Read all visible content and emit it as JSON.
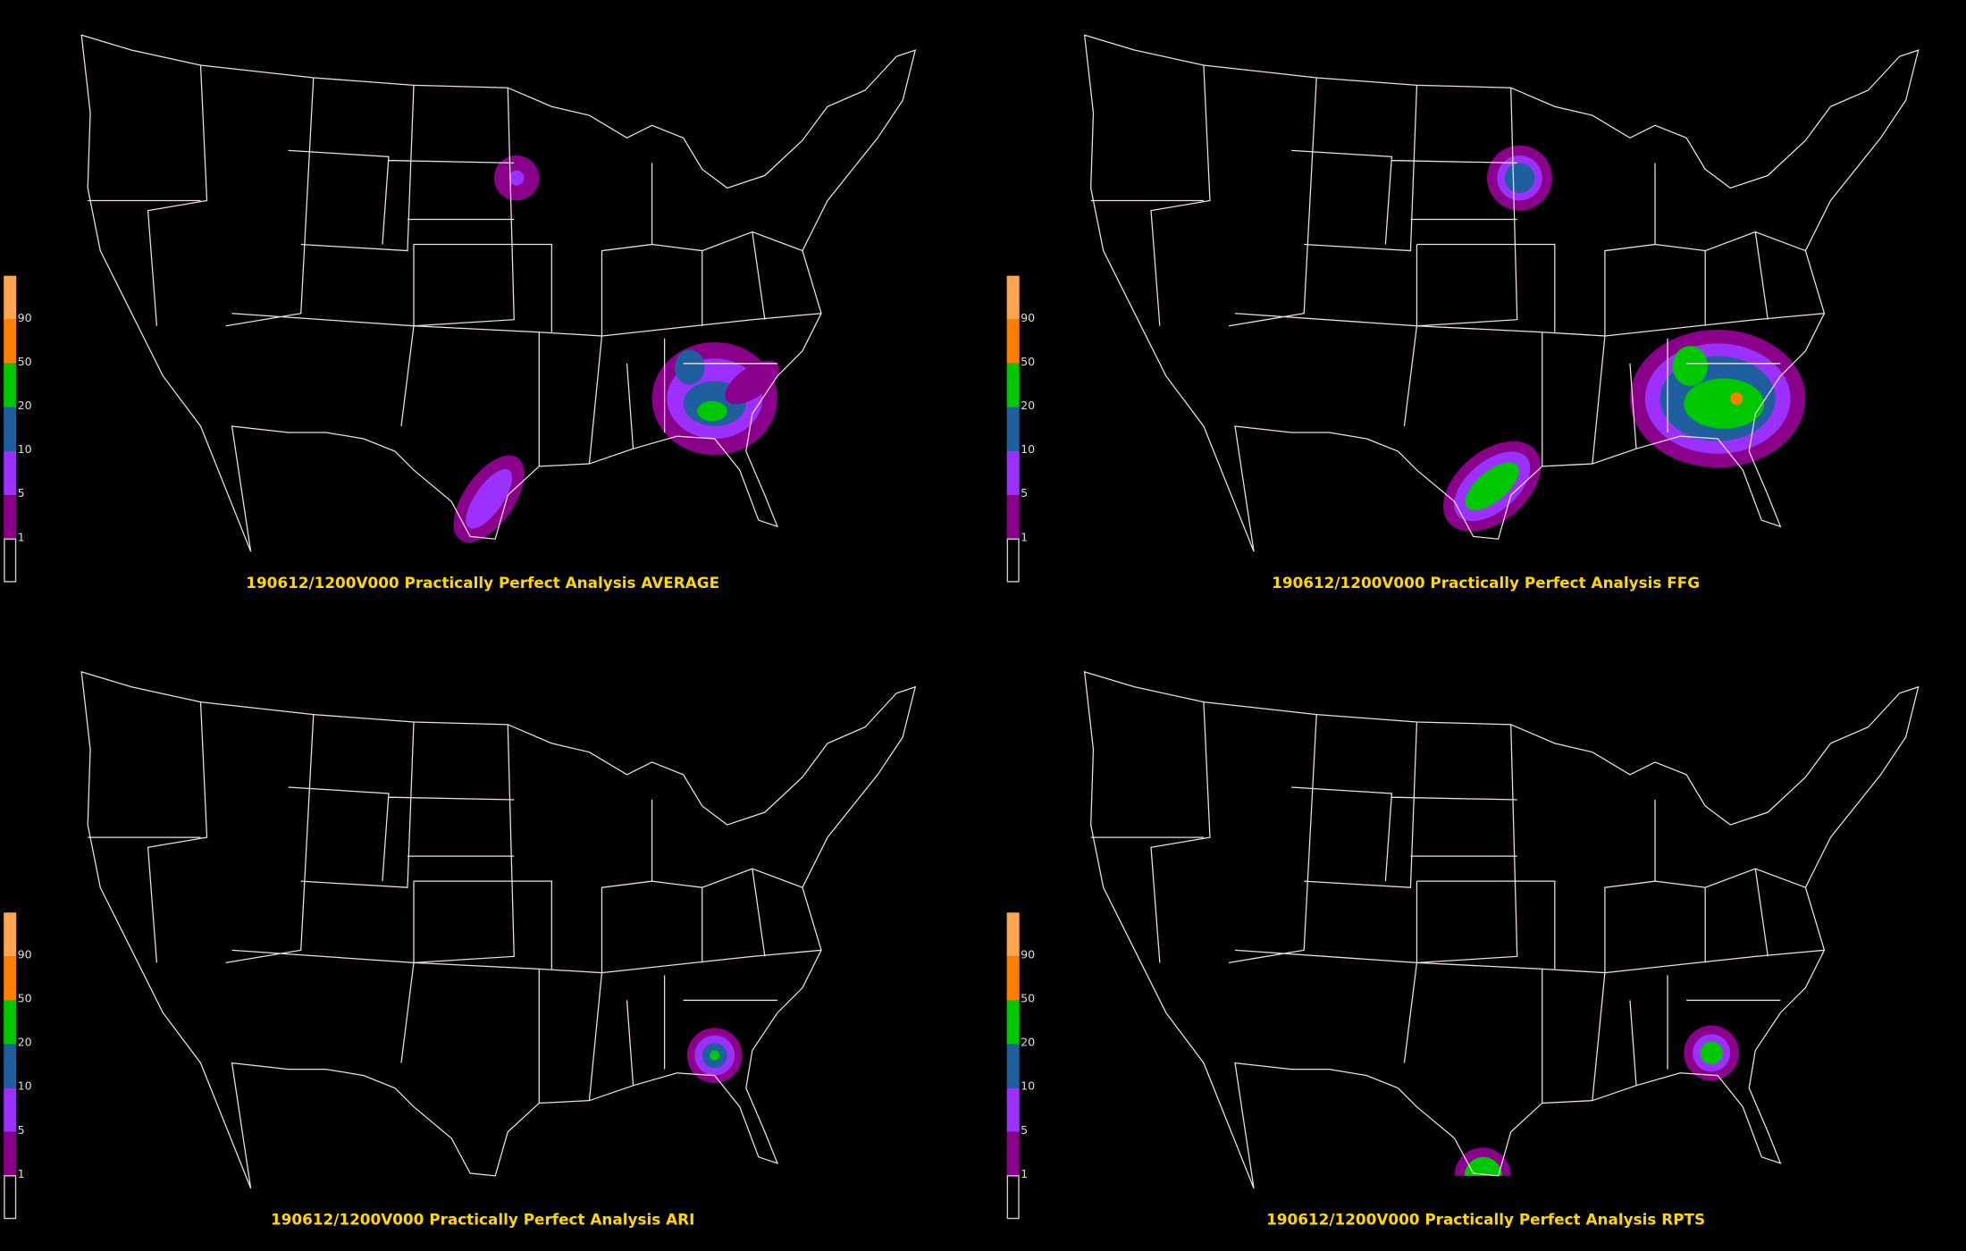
{
  "legend": {
    "colors": [
      "#ffa54f",
      "#ff7f00",
      "#00c800",
      "#1f5f9f",
      "#9b30ff",
      "#8b008b",
      "#000000"
    ],
    "ticks": [
      "90",
      "50",
      "20",
      "10",
      "5",
      "1"
    ]
  },
  "panels": [
    {
      "title": "190612/1200V000 Practically Perfect Analysis AVERAGE"
    },
    {
      "title": "190612/1200V000 Practically Perfect Analysis FFG"
    },
    {
      "title": "190612/1200V000 Practically Perfect Analysis ARI"
    },
    {
      "title": "190612/1200V000 Practically Perfect Analysis RPTS"
    }
  ]
}
